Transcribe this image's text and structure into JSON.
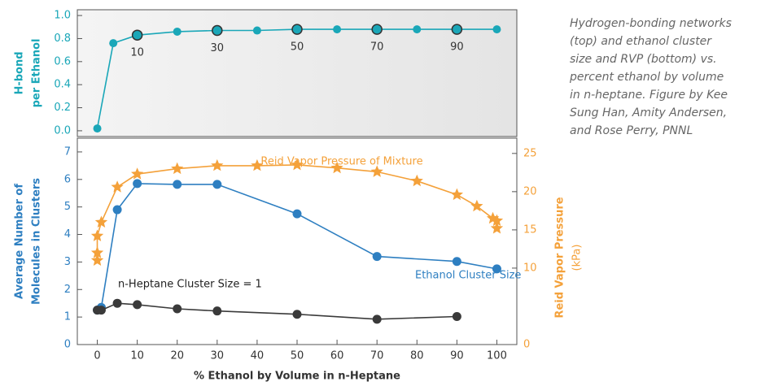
{
  "caption": [
    "Hydrogen-bonding networks",
    "(top) and ethanol cluster",
    "size and RVP (bottom) vs.",
    "percent ethanol by volume",
    "in n-heptane. Figure by Kee",
    "Sung Han, Amity Andersen,",
    "and Rose Perry, PNNL"
  ],
  "chart_data": [
    {
      "type": "line",
      "ylabel": [
        "H-bond",
        "per Ethanol"
      ],
      "xlim": [
        -5,
        105
      ],
      "ylim": [
        -0.05,
        1.05
      ],
      "yticks": [
        {
          "value": 0,
          "label": "0.0"
        },
        0.2,
        0.4,
        0.6,
        0.8,
        {
          "value": 1,
          "label": "1.0"
        }
      ],
      "xticks": [
        10,
        30,
        50,
        70,
        90
      ],
      "series": [
        {
          "color": "#1aa7b8",
          "x": [
            0,
            4,
            10,
            20,
            30,
            40,
            50,
            60,
            70,
            80,
            90,
            100
          ],
          "values": [
            0.02,
            0.76,
            0.83,
            0.86,
            0.87,
            0.87,
            0.88,
            0.88,
            0.88,
            0.88,
            0.88,
            0.88
          ]
        }
      ]
    },
    {
      "type": "line",
      "xlabel": "% Ethanol by Volume in n-Heptane",
      "ylabel": [
        "Average Number of",
        "Molecules in Clusters"
      ],
      "y2label": [
        "Reid Vapor Pressure",
        "(kPa)"
      ],
      "xlim": [
        -5,
        105
      ],
      "ylim": [
        0,
        7.5
      ],
      "y2lim": [
        0,
        27
      ],
      "xticks": [
        0,
        10,
        20,
        30,
        40,
        50,
        60,
        70,
        80,
        90,
        100
      ],
      "yticks": [
        0,
        1,
        2,
        3,
        4,
        5,
        6,
        7
      ],
      "y2ticks": [
        0,
        10,
        15,
        20,
        25
      ],
      "series": [
        {
          "name": "Ethanol Cluster Size",
          "color": "#2e7fc1",
          "marker": "circle",
          "x": [
            0,
            1,
            5,
            10,
            20,
            30,
            50,
            70,
            90,
            100
          ],
          "values": [
            1.25,
            1.35,
            4.9,
            5.85,
            5.82,
            5.82,
            4.75,
            3.2,
            3.02,
            2.75
          ]
        },
        {
          "name": "n-Heptane Cluster Size = 1",
          "color": "#3a3a3a",
          "marker": "circle",
          "x": [
            0,
            1,
            5,
            10,
            20,
            30,
            50,
            70,
            90
          ],
          "values": [
            1.25,
            1.25,
            1.5,
            1.45,
            1.3,
            1.22,
            1.1,
            0.92,
            1.02
          ]
        },
        {
          "name": "Reid Vapor Pressure of Mixture",
          "color": "#f4a13a",
          "marker": "star",
          "axis": "y2",
          "x": [
            0,
            0,
            0,
            1,
            5,
            10,
            20,
            30,
            40,
            50,
            60,
            70,
            80,
            90,
            95,
            99,
            100,
            100
          ],
          "values": [
            11,
            12,
            14.2,
            16,
            20.6,
            22.3,
            23,
            23.4,
            23.4,
            23.5,
            23.1,
            22.6,
            21.4,
            19.6,
            18.1,
            16.5,
            16.2,
            15.2
          ]
        }
      ]
    }
  ]
}
